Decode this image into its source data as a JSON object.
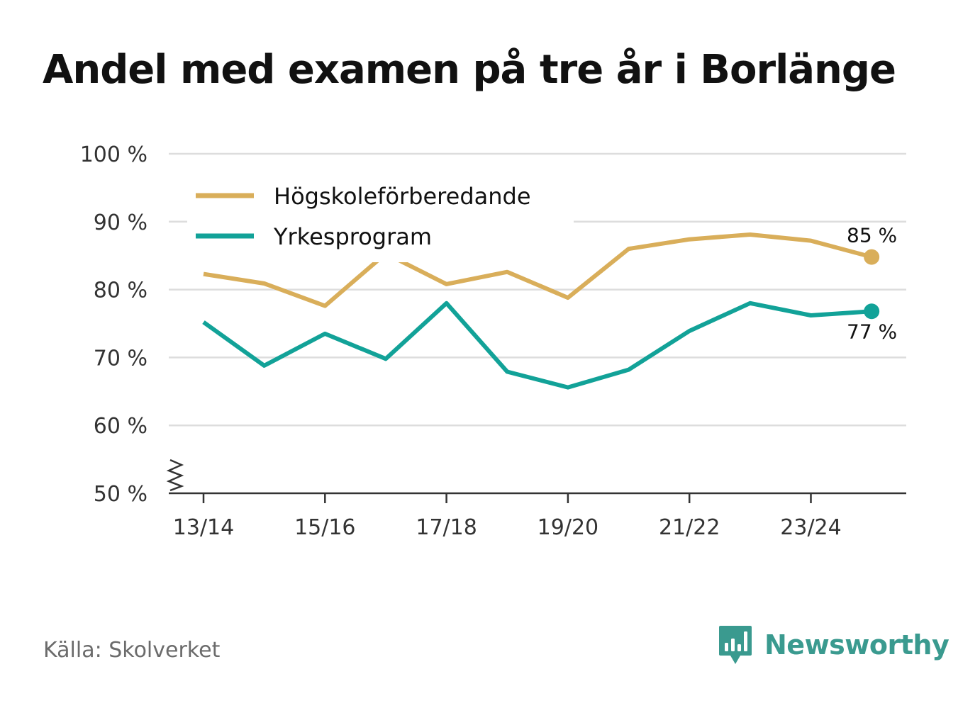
{
  "title": "Andel med examen på tre år i Borlänge",
  "source": "Källa: Skolverket",
  "brand": {
    "name": "Newsworthy",
    "icon": "newsworthy-logo-icon",
    "color": "#3a9a8f"
  },
  "colors": {
    "grid": "#dddddd",
    "axis": "#333333"
  },
  "chart_data": {
    "type": "line",
    "title": "Andel med examen på tre år i Borlänge",
    "xlabel": "",
    "ylabel": "",
    "ylim": [
      50,
      100
    ],
    "y_ticks": [
      50,
      60,
      70,
      80,
      90,
      100
    ],
    "y_tick_labels": [
      "50 %",
      "60 %",
      "70 %",
      "80 %",
      "90 %",
      "100 %"
    ],
    "y_axis_break": true,
    "grid": true,
    "legend_position": "top-left",
    "categories": [
      "13/14",
      "14/15",
      "15/16",
      "16/17",
      "17/18",
      "18/19",
      "19/20",
      "20/21",
      "21/22",
      "22/23",
      "23/24",
      "24/25"
    ],
    "x_tick_labels": [
      "13/14",
      "15/16",
      "17/18",
      "19/20",
      "21/22",
      "23/24"
    ],
    "series": [
      {
        "name": "Högskoleförberedande",
        "color": "#d9ae5a",
        "values": [
          82.3,
          80.9,
          77.6,
          85.3,
          80.8,
          82.6,
          78.8,
          86.0,
          87.4,
          88.1,
          87.2,
          84.8
        ],
        "end_label": "85 %",
        "end_label_position": "above"
      },
      {
        "name": "Yrkesprogram",
        "color": "#12a298",
        "values": [
          75.2,
          68.8,
          73.5,
          69.8,
          78.0,
          67.9,
          65.6,
          68.2,
          73.9,
          78.0,
          76.2,
          76.8
        ],
        "end_label": "77 %",
        "end_label_position": "below"
      }
    ]
  }
}
